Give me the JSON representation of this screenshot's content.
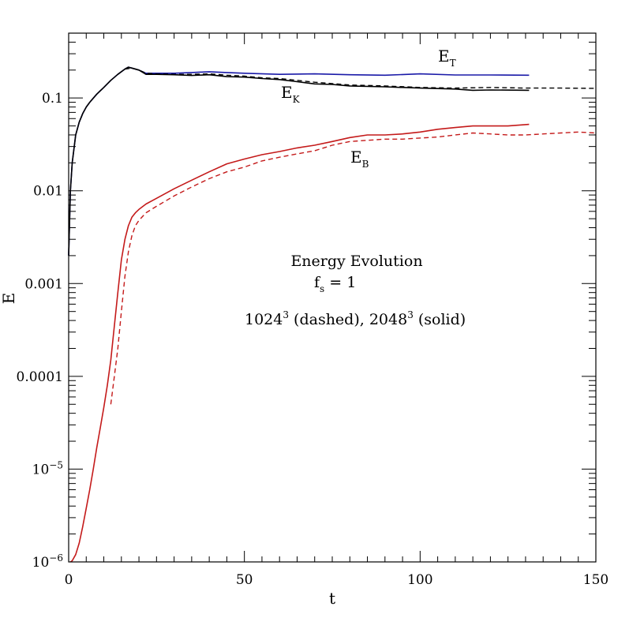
{
  "chart_data": {
    "type": "line",
    "title": "Energy Evolution",
    "xlabel": "t",
    "ylabel": "E",
    "xscale": "linear",
    "yscale": "log",
    "xlim": [
      0,
      150
    ],
    "ylim": [
      1e-06,
      0.5
    ],
    "x_ticks": [
      0,
      50,
      100,
      150
    ],
    "x_tick_labels": [
      "0",
      "50",
      "100",
      "150"
    ],
    "y_ticks": [
      1e-06,
      1e-05,
      0.0001,
      0.001,
      0.01,
      0.1
    ],
    "y_tick_labels": [
      {
        "base": "10",
        "sup": "−6"
      },
      {
        "base": "10",
        "sup": "−5"
      },
      {
        "base": "0.0001",
        "sup": ""
      },
      {
        "base": "0.001",
        "sup": ""
      },
      {
        "base": "0.01",
        "sup": ""
      },
      {
        "base": "0.1",
        "sup": ""
      }
    ],
    "annotations": {
      "title": "Energy Evolution",
      "fs_base": "f",
      "fs_sub": "s",
      "fs_rest": " = 1",
      "res_a": "1024",
      "res_a_sup": "3",
      "res_b": " (dashed), 2048",
      "res_b_sup": "3",
      "res_c": " (solid)"
    },
    "curve_labels": {
      "et": {
        "base": "E",
        "sub": "T"
      },
      "ek": {
        "base": "E",
        "sub": "K"
      },
      "eb": {
        "base": "E",
        "sub": "B"
      }
    },
    "colors": {
      "total": "#1a1aa8",
      "kinetic": "#000000",
      "magnetic": "#c41a1a",
      "axes": "#000000"
    },
    "series": [
      {
        "name": "E_T 2048^3 (solid)",
        "color": "#1a1aa8",
        "dash": "solid",
        "x": [
          0,
          0.5,
          1,
          2,
          3,
          4,
          5,
          6,
          8,
          10,
          12,
          14,
          16,
          17,
          18,
          20,
          22,
          25,
          30,
          35,
          40,
          45,
          50,
          60,
          70,
          80,
          90,
          100,
          110,
          120,
          131
        ],
        "y": [
          0.002,
          0.01,
          0.02,
          0.04,
          0.055,
          0.068,
          0.08,
          0.09,
          0.11,
          0.13,
          0.155,
          0.18,
          0.205,
          0.215,
          0.21,
          0.2,
          0.185,
          0.185,
          0.185,
          0.188,
          0.192,
          0.188,
          0.185,
          0.18,
          0.182,
          0.178,
          0.176,
          0.182,
          0.177,
          0.177,
          0.176
        ]
      },
      {
        "name": "E_K 2048^3 (solid)",
        "color": "#000000",
        "dash": "solid",
        "x": [
          0,
          0.5,
          1,
          2,
          3,
          4,
          5,
          6,
          8,
          10,
          12,
          14,
          16,
          17,
          18,
          20,
          22,
          25,
          30,
          35,
          40,
          45,
          50,
          55,
          60,
          65,
          70,
          75,
          80,
          90,
          100,
          110,
          115,
          120,
          131
        ],
        "y": [
          0.002,
          0.01,
          0.02,
          0.04,
          0.055,
          0.068,
          0.08,
          0.09,
          0.11,
          0.13,
          0.155,
          0.18,
          0.205,
          0.215,
          0.21,
          0.2,
          0.18,
          0.18,
          0.178,
          0.175,
          0.178,
          0.17,
          0.168,
          0.162,
          0.158,
          0.15,
          0.142,
          0.14,
          0.135,
          0.132,
          0.128,
          0.125,
          0.121,
          0.122,
          0.121
        ]
      },
      {
        "name": "E_K 1024^3 (dashed)",
        "color": "#000000",
        "dash": "dashed",
        "x": [
          16,
          18,
          20,
          22,
          25,
          30,
          35,
          40,
          45,
          50,
          55,
          60,
          65,
          70,
          75,
          80,
          90,
          100,
          110,
          120,
          130,
          140,
          150
        ],
        "y": [
          0.205,
          0.21,
          0.2,
          0.185,
          0.182,
          0.18,
          0.18,
          0.182,
          0.176,
          0.172,
          0.165,
          0.162,
          0.155,
          0.148,
          0.143,
          0.138,
          0.135,
          0.13,
          0.128,
          0.13,
          0.128,
          0.128,
          0.127
        ]
      },
      {
        "name": "E_B 2048^3 (solid)",
        "color": "#c41a1a",
        "dash": "solid",
        "x": [
          0.5,
          1,
          2,
          3,
          4,
          5,
          6,
          7,
          8,
          9,
          10,
          11,
          12,
          13,
          14,
          15,
          16,
          17,
          18,
          19,
          20,
          22,
          25,
          30,
          35,
          40,
          45,
          50,
          55,
          60,
          65,
          70,
          75,
          80,
          85,
          90,
          95,
          100,
          105,
          110,
          115,
          120,
          125,
          131
        ],
        "y": [
          1e-06,
          1.03e-06,
          1.2e-06,
          1.6e-06,
          2.4e-06,
          3.8e-06,
          6e-06,
          1e-05,
          1.7e-05,
          2.8e-05,
          4.6e-05,
          8e-05,
          0.00015,
          0.00035,
          0.0008,
          0.0018,
          0.003,
          0.0042,
          0.0052,
          0.0058,
          0.0063,
          0.0072,
          0.0083,
          0.0105,
          0.013,
          0.016,
          0.0195,
          0.022,
          0.0245,
          0.0265,
          0.029,
          0.031,
          0.034,
          0.0375,
          0.04,
          0.04,
          0.041,
          0.043,
          0.046,
          0.048,
          0.05,
          0.05,
          0.05,
          0.052
        ]
      },
      {
        "name": "E_B 1024^3 (dashed)",
        "color": "#c41a1a",
        "dash": "dashed",
        "x": [
          12,
          13,
          14,
          15,
          16,
          17,
          18,
          19,
          20,
          22,
          25,
          30,
          35,
          40,
          45,
          50,
          55,
          60,
          65,
          70,
          75,
          80,
          85,
          90,
          95,
          100,
          105,
          110,
          115,
          120,
          125,
          130,
          135,
          140,
          145,
          150
        ],
        "y": [
          5e-05,
          0.0001,
          0.0002,
          0.0005,
          0.0012,
          0.0022,
          0.0033,
          0.0042,
          0.0048,
          0.0058,
          0.0068,
          0.0088,
          0.011,
          0.0135,
          0.016,
          0.018,
          0.021,
          0.023,
          0.025,
          0.027,
          0.031,
          0.034,
          0.035,
          0.036,
          0.036,
          0.037,
          0.038,
          0.04,
          0.042,
          0.041,
          0.04,
          0.04,
          0.041,
          0.042,
          0.043,
          0.042
        ]
      }
    ]
  }
}
